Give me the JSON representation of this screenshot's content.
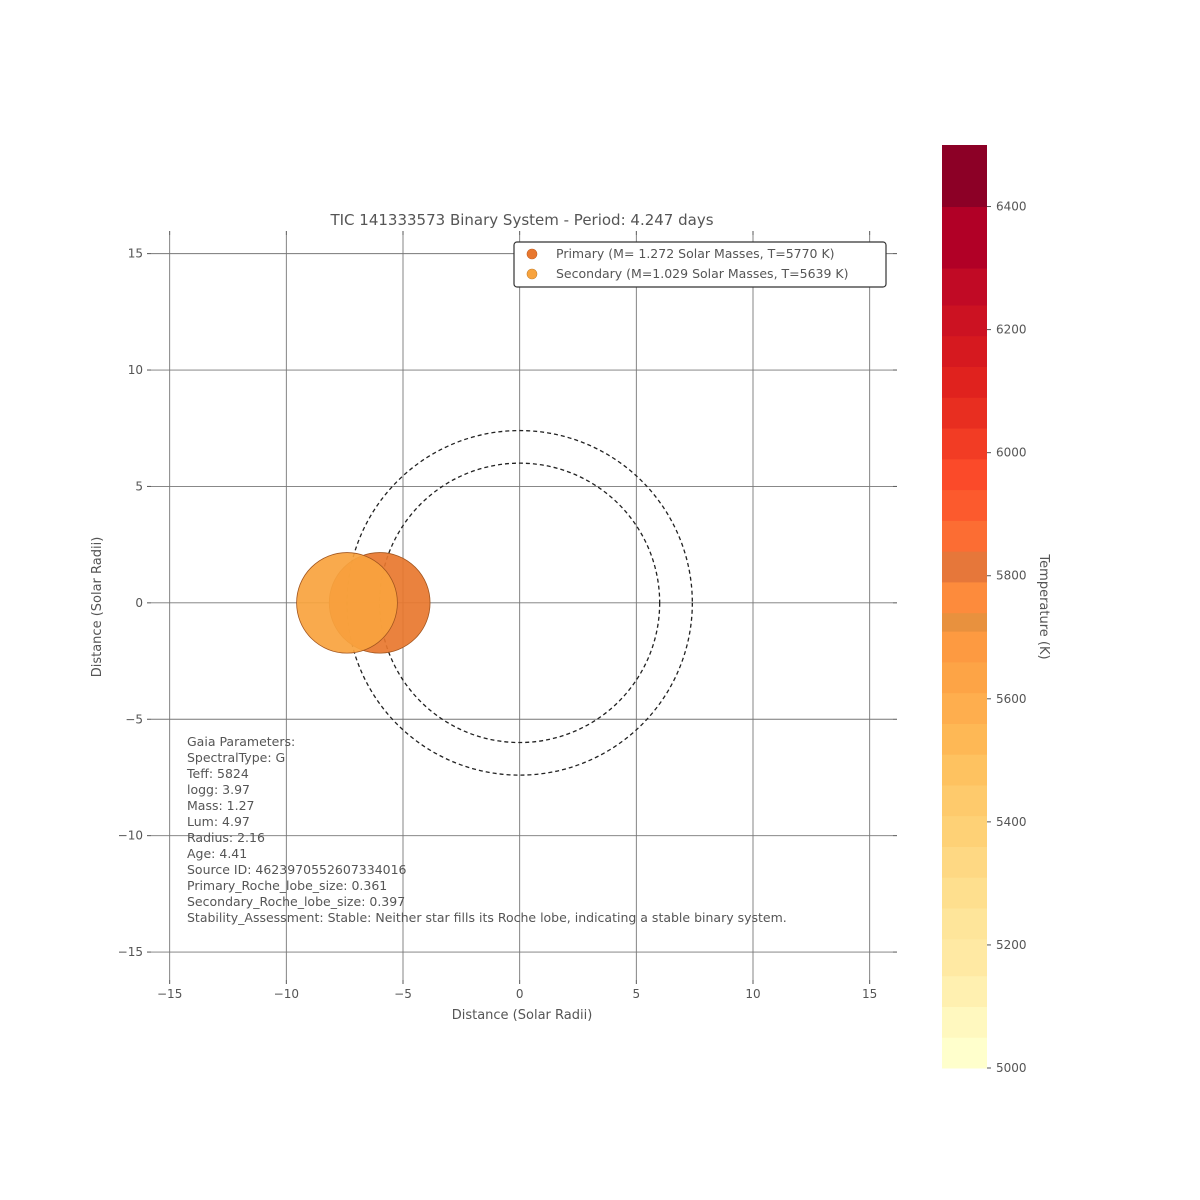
{
  "chart_data": [
    {
      "type": "scatter",
      "title": "TIC 141333573 Binary System - Period: 4.247 days",
      "xlabel": "Distance (Solar Radii)",
      "ylabel": "Distance (Solar Radii)",
      "xlim": [
        -15.8,
        16.0
      ],
      "ylim": [
        -16.2,
        15.8
      ],
      "xticks": [
        -15,
        -10,
        -5,
        0,
        5,
        10,
        15
      ],
      "yticks": [
        -15,
        -10,
        -5,
        0,
        5,
        10,
        15
      ],
      "xtick_labels": [
        "−15",
        "−10",
        "−5",
        "0",
        "5",
        "10",
        "15"
      ],
      "ytick_labels": [
        "−15",
        "−10",
        "−5",
        "0",
        "5",
        "10",
        "15"
      ],
      "grid": true,
      "legend_position": "top-right",
      "series": [
        {
          "name": "Primary (M= 1.272  Solar Masses, T=5770 K)",
          "x": -6.0,
          "y": 0.0,
          "radius": 2.16,
          "color": "#e8772e"
        },
        {
          "name": "Secondary (M=1.029 Solar Masses, T=5639 K)",
          "x": -7.4,
          "y": 0.0,
          "radius": 2.16,
          "color": "#f8a33e"
        }
      ],
      "orbits": [
        {
          "center": [
            0,
            0
          ],
          "radius": 6.0
        },
        {
          "center": [
            0,
            0
          ],
          "radius": 7.4
        }
      ],
      "annotation_lines": [
        "Gaia Parameters:",
        "SpectralType: G",
        "Teff: 5824",
        "logg: 3.97",
        "Mass: 1.27",
        "Lum: 4.97",
        "Radius: 2.16",
        "Age: 4.41",
        "Source ID: 4623970552607334016",
        "Primary_Roche_lobe_size: 0.361",
        "Secondary_Roche_lobe_size: 0.397",
        "Stability_Assessment: Stable: Neither star fills its Roche lobe, indicating a stable binary system."
      ]
    },
    {
      "type": "heatmap",
      "role": "colorbar",
      "label": "Temperature (K)",
      "range": [
        5000,
        6500
      ],
      "ticks": [
        5000,
        5200,
        5400,
        5600,
        5800,
        6000,
        6200,
        6400
      ],
      "tick_labels": [
        "5000",
        "5200",
        "5400",
        "5600",
        "5800",
        "6000",
        "6200",
        "6400"
      ],
      "bands": [
        {
          "from": 5000,
          "to": 5050,
          "color": "#ffffcc"
        },
        {
          "from": 5050,
          "to": 5100,
          "color": "#fff8bf"
        },
        {
          "from": 5100,
          "to": 5150,
          "color": "#fff0b0"
        },
        {
          "from": 5150,
          "to": 5210,
          "color": "#ffe9a3"
        },
        {
          "from": 5210,
          "to": 5260,
          "color": "#fee59a"
        },
        {
          "from": 5260,
          "to": 5310,
          "color": "#fedf8e"
        },
        {
          "from": 5310,
          "to": 5360,
          "color": "#fed883"
        },
        {
          "from": 5360,
          "to": 5410,
          "color": "#fed176"
        },
        {
          "from": 5410,
          "to": 5460,
          "color": "#feca6c"
        },
        {
          "from": 5460,
          "to": 5510,
          "color": "#fec260"
        },
        {
          "from": 5510,
          "to": 5560,
          "color": "#feb855"
        },
        {
          "from": 5560,
          "to": 5610,
          "color": "#feae4e"
        },
        {
          "from": 5610,
          "to": 5660,
          "color": "#fda446"
        },
        {
          "from": 5660,
          "to": 5710,
          "color": "#fd9a41"
        },
        {
          "from": 5710,
          "to": 5740,
          "color": "#e8913e"
        },
        {
          "from": 5740,
          "to": 5790,
          "color": "#fd8b3c"
        },
        {
          "from": 5790,
          "to": 5840,
          "color": "#e6773a"
        },
        {
          "from": 5840,
          "to": 5890,
          "color": "#fc6d33"
        },
        {
          "from": 5890,
          "to": 5940,
          "color": "#fc5a2d"
        },
        {
          "from": 5940,
          "to": 5990,
          "color": "#fb4a29"
        },
        {
          "from": 5990,
          "to": 6040,
          "color": "#f23c24"
        },
        {
          "from": 6040,
          "to": 6090,
          "color": "#e82e20"
        },
        {
          "from": 6090,
          "to": 6140,
          "color": "#e0221e"
        },
        {
          "from": 6140,
          "to": 6190,
          "color": "#d6191f"
        },
        {
          "from": 6190,
          "to": 6240,
          "color": "#cc1222"
        },
        {
          "from": 6240,
          "to": 6300,
          "color": "#c10a25"
        },
        {
          "from": 6300,
          "to": 6400,
          "color": "#b10026"
        },
        {
          "from": 6400,
          "to": 6500,
          "color": "#8c0026"
        }
      ]
    }
  ]
}
